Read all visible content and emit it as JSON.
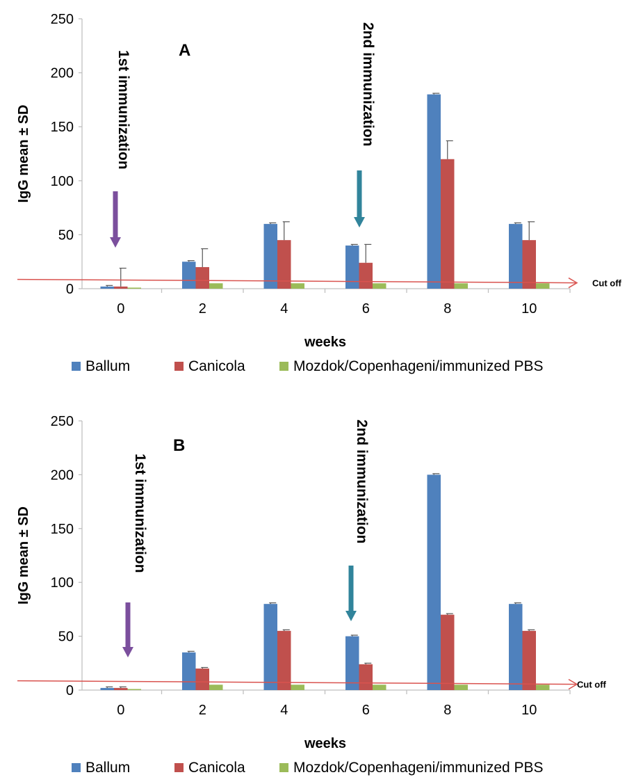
{
  "colors": {
    "ballum": "#4f81bd",
    "canicola": "#c0504d",
    "mozdok": "#9bbb59",
    "cutoff": "#d9534f",
    "arrow_first": "#7b4f9d",
    "arrow_second": "#31849b",
    "axis": "#bfbfbf"
  },
  "chart_data": [
    {
      "type": "bar",
      "panel_label": "A",
      "categories": [
        "0",
        "2",
        "4",
        "6",
        "8",
        "10"
      ],
      "xlabel": "weeks",
      "ylabel": "IgG mean ± SD",
      "ylim": [
        0,
        250
      ],
      "yticks": [
        "0",
        "50",
        "100",
        "150",
        "200",
        "250"
      ],
      "grid": false,
      "legend_position": "bottom",
      "series": [
        {
          "name": "Ballum",
          "color_key": "ballum",
          "values": [
            2,
            25,
            60,
            40,
            180,
            60
          ],
          "error": [
            1,
            1,
            1,
            1,
            1,
            1
          ]
        },
        {
          "name": "Canicola",
          "color_key": "canicola",
          "values": [
            2,
            20,
            45,
            24,
            120,
            45
          ],
          "error": [
            17,
            17,
            17,
            17,
            17,
            17
          ]
        },
        {
          "name": "Mozdok/Copenhageni/immunized PBS",
          "color_key": "mozdok",
          "values": [
            1,
            5,
            5,
            5,
            5,
            5
          ],
          "error": [
            0,
            0,
            0,
            0,
            0,
            0
          ]
        }
      ],
      "cutoff": {
        "label": "Cut off",
        "value": 8
      },
      "annotations": [
        {
          "text": "1st immunization",
          "category": "0",
          "arrow_color_key": "arrow_first"
        },
        {
          "text": "2nd immunization",
          "category": "6",
          "arrow_color_key": "arrow_second"
        }
      ]
    },
    {
      "type": "bar",
      "panel_label": "B",
      "categories": [
        "0",
        "2",
        "4",
        "6",
        "8",
        "10"
      ],
      "xlabel": "weeks",
      "ylabel": "IgG mean ± SD",
      "ylim": [
        0,
        250
      ],
      "yticks": [
        "0",
        "50",
        "100",
        "150",
        "200",
        "250"
      ],
      "grid": false,
      "legend_position": "bottom",
      "series": [
        {
          "name": "Ballum",
          "color_key": "ballum",
          "values": [
            2,
            35,
            80,
            50,
            200,
            80
          ],
          "error": [
            1,
            1,
            1,
            1,
            1,
            1
          ]
        },
        {
          "name": "Canicola",
          "color_key": "canicola",
          "values": [
            2,
            20,
            55,
            24,
            70,
            55
          ],
          "error": [
            1,
            1,
            1,
            1,
            1,
            1
          ]
        },
        {
          "name": "Mozdok/Copenhageni/immunized PBS",
          "color_key": "mozdok",
          "values": [
            1,
            5,
            5,
            5,
            5,
            5
          ],
          "error": [
            0,
            0,
            0,
            0,
            0,
            0
          ]
        }
      ],
      "cutoff": {
        "label": "Cut off",
        "value": 8
      },
      "annotations": [
        {
          "text": "1st immunization",
          "category": "0",
          "arrow_color_key": "arrow_first"
        },
        {
          "text": "2nd immunization",
          "category": "6",
          "arrow_color_key": "arrow_second"
        }
      ]
    }
  ]
}
